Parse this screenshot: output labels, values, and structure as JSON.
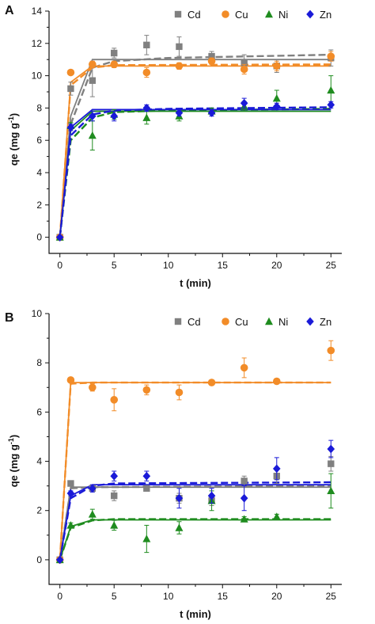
{
  "colors": {
    "Cd": "#808080",
    "Cu": "#f28c28",
    "Ni": "#1f8c1f",
    "Zn": "#1a1ad8"
  },
  "chart_data": [
    {
      "panel_label": "A",
      "type": "scatter",
      "xlabel": "t (min)",
      "ylabel_base": "qe (mg g",
      "ylabel_sup": "-1",
      "ylabel_close": ")",
      "xlim": [
        -1,
        26
      ],
      "ylim": [
        -1,
        14
      ],
      "xticks": [
        0,
        5,
        10,
        15,
        20,
        25
      ],
      "yticks": [
        0,
        2,
        4,
        6,
        8,
        10,
        12,
        14
      ],
      "legend_position": "top-right",
      "x": [
        0,
        1,
        3,
        5,
        8,
        11,
        14,
        17,
        20,
        25
      ],
      "series": [
        {
          "name": "Cd",
          "marker": "square",
          "values": [
            0,
            9.2,
            9.7,
            11.4,
            11.9,
            11.8,
            11.2,
            10.8,
            10.6,
            11.1
          ],
          "errors": [
            0,
            0.4,
            1.0,
            0.3,
            0.6,
            0.6,
            0.3,
            0.5,
            0.4,
            0.5
          ],
          "fit_solid": [
            [
              0,
              0
            ],
            [
              1,
              7.5
            ],
            [
              3,
              11.0
            ],
            [
              25,
              11.0
            ]
          ],
          "fit_dashed": [
            [
              0,
              0
            ],
            [
              1,
              7.0
            ],
            [
              3,
              10.5
            ],
            [
              5,
              10.9
            ],
            [
              10,
              11.1
            ],
            [
              25,
              11.3
            ]
          ]
        },
        {
          "name": "Cu",
          "marker": "circle",
          "values": [
            0,
            10.2,
            10.7,
            10.7,
            10.2,
            10.6,
            10.9,
            10.4,
            10.6,
            11.2
          ],
          "errors": [
            0,
            0.1,
            0.2,
            0.2,
            0.3,
            0.2,
            0.2,
            0.3,
            0.3,
            0.3
          ],
          "fit_solid": [
            [
              0,
              0
            ],
            [
              1,
              9.6
            ],
            [
              3,
              10.6
            ],
            [
              25,
              10.6
            ]
          ],
          "fit_dashed": [
            [
              0,
              0
            ],
            [
              1,
              9.4
            ],
            [
              3,
              10.5
            ],
            [
              5,
              10.65
            ],
            [
              25,
              10.7
            ]
          ]
        },
        {
          "name": "Ni",
          "marker": "triangle",
          "values": [
            0,
            6.9,
            6.3,
            7.6,
            7.4,
            7.5,
            7.8,
            8.1,
            8.6,
            9.1
          ],
          "errors": [
            0,
            0.2,
            0.9,
            0.3,
            0.4,
            0.3,
            0.2,
            0.3,
            0.5,
            0.9
          ],
          "fit_solid": [
            [
              0,
              0
            ],
            [
              1,
              6.6
            ],
            [
              3,
              7.8
            ],
            [
              25,
              7.8
            ]
          ],
          "fit_dashed": [
            [
              0,
              0
            ],
            [
              1,
              6.0
            ],
            [
              3,
              7.4
            ],
            [
              5,
              7.75
            ],
            [
              10,
              7.85
            ],
            [
              25,
              7.95
            ]
          ]
        },
        {
          "name": "Zn",
          "marker": "diamond",
          "values": [
            0,
            6.8,
            7.5,
            7.5,
            8.0,
            7.7,
            7.7,
            8.3,
            8.1,
            8.2
          ],
          "errors": [
            0,
            0.2,
            0.3,
            0.3,
            0.2,
            0.2,
            0.2,
            0.3,
            0.2,
            0.2
          ],
          "fit_solid": [
            [
              0,
              0
            ],
            [
              1,
              6.8
            ],
            [
              3,
              7.9
            ],
            [
              25,
              7.9
            ]
          ],
          "fit_dashed": [
            [
              0,
              0
            ],
            [
              1,
              6.3
            ],
            [
              3,
              7.6
            ],
            [
              5,
              7.85
            ],
            [
              10,
              7.95
            ],
            [
              25,
              8.05
            ]
          ]
        }
      ]
    },
    {
      "panel_label": "B",
      "type": "scatter",
      "xlabel": "t (min)",
      "ylabel_base": "qe (mg g",
      "ylabel_sup": "-1",
      "ylabel_close": ")",
      "xlim": [
        -1,
        26
      ],
      "ylim": [
        -1,
        10
      ],
      "xticks": [
        0,
        5,
        10,
        15,
        20,
        25
      ],
      "yticks": [
        0,
        2,
        4,
        6,
        8,
        10
      ],
      "legend_position": "top-right",
      "x": [
        0,
        1,
        3,
        5,
        8,
        11,
        14,
        17,
        20,
        25
      ],
      "series": [
        {
          "name": "Cd",
          "marker": "square",
          "values": [
            0,
            3.1,
            2.9,
            2.6,
            2.9,
            2.5,
            2.4,
            3.2,
            3.4,
            3.9
          ],
          "errors": [
            0,
            0.1,
            0.1,
            0.2,
            0.1,
            0.2,
            0.2,
            0.2,
            0.3,
            0.3
          ],
          "fit_solid": [
            [
              0,
              0
            ],
            [
              1,
              2.95
            ],
            [
              25,
              2.95
            ]
          ],
          "fit_dashed": [
            [
              0,
              0
            ],
            [
              1,
              2.9
            ],
            [
              3,
              2.95
            ],
            [
              25,
              3.0
            ]
          ]
        },
        {
          "name": "Cu",
          "marker": "circle",
          "values": [
            0,
            7.3,
            7.0,
            6.5,
            6.9,
            6.8,
            7.2,
            7.8,
            7.25,
            8.5
          ],
          "errors": [
            0,
            0.05,
            0.15,
            0.45,
            0.2,
            0.3,
            0.1,
            0.4,
            0.1,
            0.4
          ],
          "fit_solid": [
            [
              0,
              0
            ],
            [
              1,
              7.2
            ],
            [
              25,
              7.2
            ]
          ],
          "fit_dashed": [
            [
              0,
              0
            ],
            [
              1,
              7.15
            ],
            [
              3,
              7.2
            ],
            [
              25,
              7.2
            ]
          ]
        },
        {
          "name": "Ni",
          "marker": "triangle",
          "values": [
            0,
            1.4,
            1.85,
            1.4,
            0.85,
            1.3,
            2.4,
            1.65,
            1.75,
            2.8
          ],
          "errors": [
            0,
            0.1,
            0.2,
            0.2,
            0.55,
            0.25,
            0.4,
            0.1,
            0.1,
            0.7
          ],
          "fit_solid": [
            [
              0,
              0
            ],
            [
              1,
              1.35
            ],
            [
              3,
              1.62
            ],
            [
              25,
              1.62
            ]
          ],
          "fit_dashed": [
            [
              0,
              0
            ],
            [
              1,
              1.3
            ],
            [
              3,
              1.6
            ],
            [
              5,
              1.65
            ],
            [
              25,
              1.65
            ]
          ]
        },
        {
          "name": "Zn",
          "marker": "diamond",
          "values": [
            0,
            2.7,
            2.9,
            3.4,
            3.4,
            2.5,
            2.6,
            2.5,
            3.7,
            4.5
          ],
          "errors": [
            0,
            0.1,
            0.15,
            0.2,
            0.2,
            0.4,
            0.3,
            0.5,
            0.45,
            0.35
          ],
          "fit_solid": [
            [
              0,
              0
            ],
            [
              1,
              2.6
            ],
            [
              3,
              3.05
            ],
            [
              25,
              3.05
            ]
          ],
          "fit_dashed": [
            [
              0,
              0
            ],
            [
              1,
              2.5
            ],
            [
              3,
              3.0
            ],
            [
              5,
              3.1
            ],
            [
              25,
              3.15
            ]
          ]
        }
      ]
    }
  ]
}
